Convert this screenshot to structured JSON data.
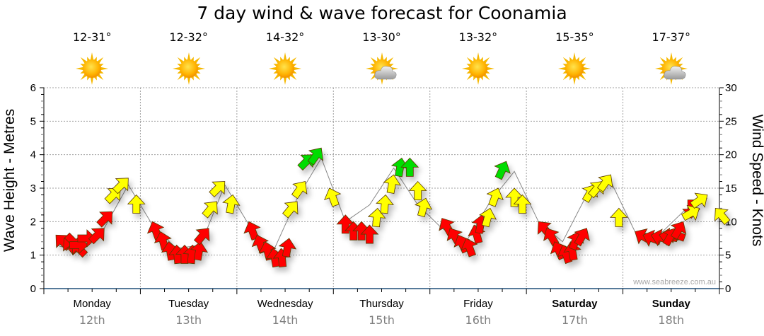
{
  "title": "7 day wind & wave forecast for Coonamia",
  "watermark": "www.seabreeze.com.au",
  "days": [
    {
      "name": "Monday",
      "date": "12th",
      "temp": "12-31°",
      "icon": "sunny-icon",
      "weekend": false
    },
    {
      "name": "Tuesday",
      "date": "13th",
      "temp": "12-32°",
      "icon": "sunny-icon",
      "weekend": false
    },
    {
      "name": "Wednesday",
      "date": "14th",
      "temp": "14-32°",
      "icon": "sunny-icon",
      "weekend": false
    },
    {
      "name": "Thursday",
      "date": "15th",
      "temp": "13-30°",
      "icon": "partly-cloudy-icon",
      "weekend": false
    },
    {
      "name": "Friday",
      "date": "16th",
      "temp": "13-32°",
      "icon": "sunny-icon",
      "weekend": false
    },
    {
      "name": "Saturday",
      "date": "17th",
      "temp": "15-35°",
      "icon": "sunny-icon",
      "weekend": true
    },
    {
      "name": "Sunday",
      "date": "18th",
      "temp": "17-37°",
      "icon": "partly-cloudy-icon",
      "weekend": true
    }
  ],
  "colors": {
    "light": "#ff0000",
    "moderate": "#ffff00",
    "strong": "#00dd00",
    "axis": "#1f4e79",
    "grid": "#a0a0a0"
  },
  "chart_data": {
    "type": "scatter",
    "title": "7 day wind & wave forecast for Coonamia",
    "ylabel_left": "Wave Height - Metres",
    "ylabel_right": "Wind Speed - Knots",
    "ylim_left": [
      0,
      6
    ],
    "ylim_right": [
      0,
      30
    ],
    "yticks_left": [
      "0",
      "1",
      "2",
      "3",
      "4",
      "5",
      "6"
    ],
    "yticks_right": [
      "0",
      "5",
      "10",
      "15",
      "20",
      "25",
      "30"
    ],
    "grid": true,
    "xcategories": [
      "Monday",
      "Tuesday",
      "Wednesday",
      "Thursday",
      "Friday",
      "Saturday",
      "Sunday"
    ],
    "speed_thresholds_knots": {
      "moderate": 12,
      "strong": 19
    },
    "wind_series": {
      "name": "Wind speed (knots) with direction arrows",
      "hours": [
        3,
        5,
        7,
        9,
        11,
        13,
        15,
        17,
        19,
        21,
        23,
        27,
        29,
        31,
        33,
        35,
        37,
        39,
        41,
        43,
        45,
        47,
        51,
        53,
        55,
        57,
        59,
        61,
        63,
        65,
        67,
        69,
        71,
        75,
        77,
        79,
        81,
        83,
        85,
        87,
        89,
        91,
        93,
        95,
        99,
        101,
        103,
        105,
        107,
        109,
        111,
        113,
        115,
        117,
        119,
        123,
        125,
        127,
        129,
        131,
        133,
        135,
        137,
        139,
        141,
        143,
        147,
        149,
        151,
        153,
        155,
        157,
        159,
        161,
        163,
        165,
        167
      ],
      "knots": [
        8,
        7.5,
        7,
        6,
        6.5,
        7.5,
        9,
        11.5,
        15,
        16.5,
        14,
        10,
        8.5,
        7,
        6.5,
        6.5,
        6.5,
        7,
        9,
        13,
        16,
        14,
        10,
        8,
        7,
        6,
        6,
        7.5,
        13,
        16,
        20,
        21,
        15,
        11,
        10,
        10,
        9.5,
        12,
        14,
        17,
        19.5,
        19.5,
        16,
        13.5,
        10.5,
        9,
        8,
        7.5,
        9.5,
        11,
        12,
        15,
        19,
        15,
        14,
        10,
        9,
        7,
        6.5,
        7,
        8.5,
        9,
        15.5,
        16,
        17,
        12,
        8.5,
        8,
        8,
        8,
        8.5,
        9,
        10,
        10.5,
        12,
        14,
        12
      ],
      "direction_deg": [
        315,
        320,
        315,
        135,
        90,
        90,
        45,
        45,
        45,
        45,
        0,
        340,
        345,
        350,
        355,
        0,
        5,
        10,
        40,
        40,
        45,
        10,
        340,
        340,
        345,
        350,
        355,
        10,
        40,
        35,
        45,
        35,
        340,
        0,
        0,
        0,
        0,
        5,
        5,
        10,
        10,
        0,
        0,
        15,
        330,
        330,
        335,
        340,
        345,
        10,
        15,
        20,
        25,
        0,
        0,
        320,
        330,
        335,
        340,
        350,
        20,
        30,
        30,
        40,
        35,
        0,
        300,
        290,
        285,
        280,
        290,
        30,
        30,
        180,
        60,
        55,
        320
      ]
    },
    "wave_series": {
      "name": "Wave height (metres) connecting line",
      "hours": [
        3,
        9,
        15,
        21,
        27,
        33,
        39,
        45,
        51,
        57,
        63,
        69,
        75,
        81,
        87,
        93,
        99,
        105,
        111,
        117,
        123,
        129,
        135,
        141,
        147,
        153,
        159,
        165
      ],
      "metres": [
        1.3,
        1.1,
        1.8,
        3.1,
        1.9,
        1.2,
        1.3,
        3.1,
        1.9,
        1.1,
        2.7,
        3.9,
        2.0,
        2.5,
        3.6,
        2.5,
        1.8,
        1.4,
        2.6,
        3.5,
        2.0,
        1.4,
        2.8,
        3.2,
        1.7,
        1.6,
        2.3,
        2.7
      ]
    }
  }
}
